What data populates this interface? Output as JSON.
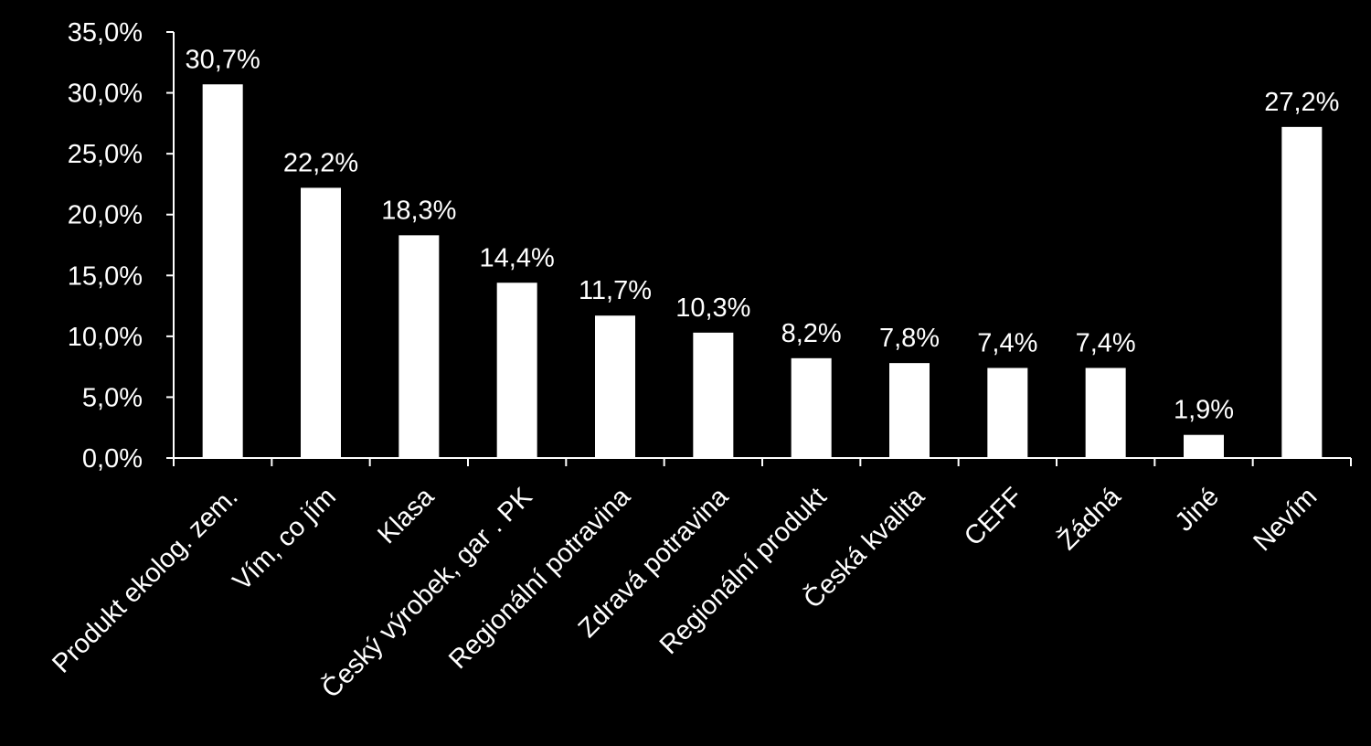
{
  "colors": {
    "background": "#000000",
    "bar": "#ffffff",
    "axis": "#ffffff",
    "text": "#ffffff"
  },
  "chart_data": {
    "type": "bar",
    "title": "",
    "xlabel": "",
    "ylabel": "",
    "ylim": [
      0,
      35
    ],
    "yticks": [
      0,
      5,
      10,
      15,
      20,
      25,
      30,
      35
    ],
    "ytick_labels": [
      "0,0%",
      "5,0%",
      "10,0%",
      "15,0%",
      "20,0%",
      "25,0%",
      "30,0%",
      "35,0%"
    ],
    "grid": false,
    "legend": "none",
    "categories": [
      "Produkt ekolog. zem.",
      "Vím, co jím",
      "Klasa",
      "Český výrobek, gar . PK",
      "Regionální potravina",
      "Zdravá potravina",
      "Regionální produkt",
      "Česká kvalita",
      "CEFF",
      "Žádná",
      "Jiné",
      "Nevím"
    ],
    "values": [
      30.7,
      22.2,
      18.3,
      14.4,
      11.7,
      10.3,
      8.2,
      7.8,
      7.4,
      7.4,
      1.9,
      27.2
    ],
    "data_labels": [
      "30,7%",
      "22,2%",
      "18,3%",
      "14,4%",
      "11,7%",
      "10,3%",
      "8,2%",
      "7,8%",
      "7,4%",
      "7,4%",
      "1,9%",
      "27,2%"
    ]
  }
}
